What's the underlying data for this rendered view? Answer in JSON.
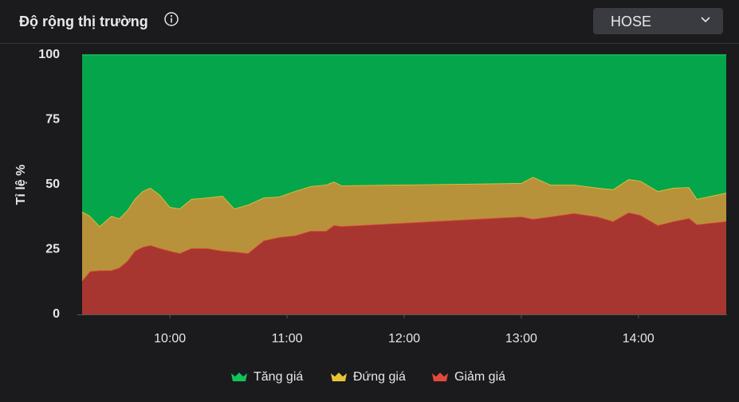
{
  "header": {
    "title": "Độ rộng thị trường",
    "exchange": "HOSE"
  },
  "chart_data": {
    "type": "stacked-area",
    "y_label": "Tỉ lệ %",
    "x": [
      "09:15",
      "09:19",
      "09:24",
      "09:30",
      "09:34",
      "09:38",
      "09:42",
      "09:46",
      "09:50",
      "09:55",
      "10:00",
      "10:05",
      "10:11",
      "10:19",
      "10:27",
      "10:33",
      "10:40",
      "10:48",
      "10:56",
      "11:04",
      "11:12",
      "11:20",
      "11:24",
      "11:28",
      "13:00",
      "13:06",
      "13:15",
      "13:27",
      "13:39",
      "13:47",
      "13:55",
      "14:01",
      "14:10",
      "14:18",
      "14:26",
      "14:30",
      "14:45"
    ],
    "xlim": [
      "09:15",
      "14:45"
    ],
    "xticks": [
      "10:00",
      "11:00",
      "12:00",
      "13:00",
      "14:00"
    ],
    "ylim": [
      0,
      100
    ],
    "yticks": [
      0,
      25,
      50,
      75,
      100
    ],
    "legend": "bottom",
    "series": [
      {
        "name": "Tăng giá",
        "color": "#05a54b",
        "values": [
          60.4,
          62,
          66,
          62,
          63,
          60,
          55.5,
          52.5,
          51.2,
          54,
          58.6,
          59.2,
          55.5,
          55,
          54.3,
          59.2,
          57.7,
          55,
          54.6,
          52.5,
          50.6,
          50,
          48.8,
          50.3,
          49.4,
          47,
          50,
          50,
          51.2,
          51.8,
          47.9,
          48.5,
          52.5,
          51.2,
          51,
          55.5,
          53.1
        ]
      },
      {
        "name": "Đứng giá",
        "color": "#b8923a",
        "values": [
          26.6,
          21.4,
          17,
          21,
          19,
          19.5,
          20,
          21.5,
          22.1,
          20.5,
          16.9,
          17.2,
          19,
          19.5,
          21.2,
          16.6,
          18.7,
          16.5,
          15.6,
          17.1,
          17.2,
          17.8,
          16.8,
          15.7,
          12.9,
          16.2,
          12.3,
          11,
          11.1,
          12.3,
          12.8,
          13.2,
          13.1,
          12.9,
          11.9,
          9.8,
          11
        ]
      },
      {
        "name": "Giảm giá",
        "color": "#a73630",
        "values": [
          13,
          16.6,
          17,
          17,
          18,
          20.5,
          24.5,
          26,
          26.7,
          25.5,
          24.5,
          23.6,
          25.5,
          25.5,
          24.5,
          24.2,
          23.6,
          28.5,
          29.8,
          30.4,
          32.2,
          32.2,
          34.4,
          34,
          37.7,
          36.8,
          37.7,
          39,
          37.7,
          35.9,
          39.3,
          38.3,
          34.4,
          35.9,
          37.1,
          34.7,
          35.9
        ]
      }
    ]
  }
}
